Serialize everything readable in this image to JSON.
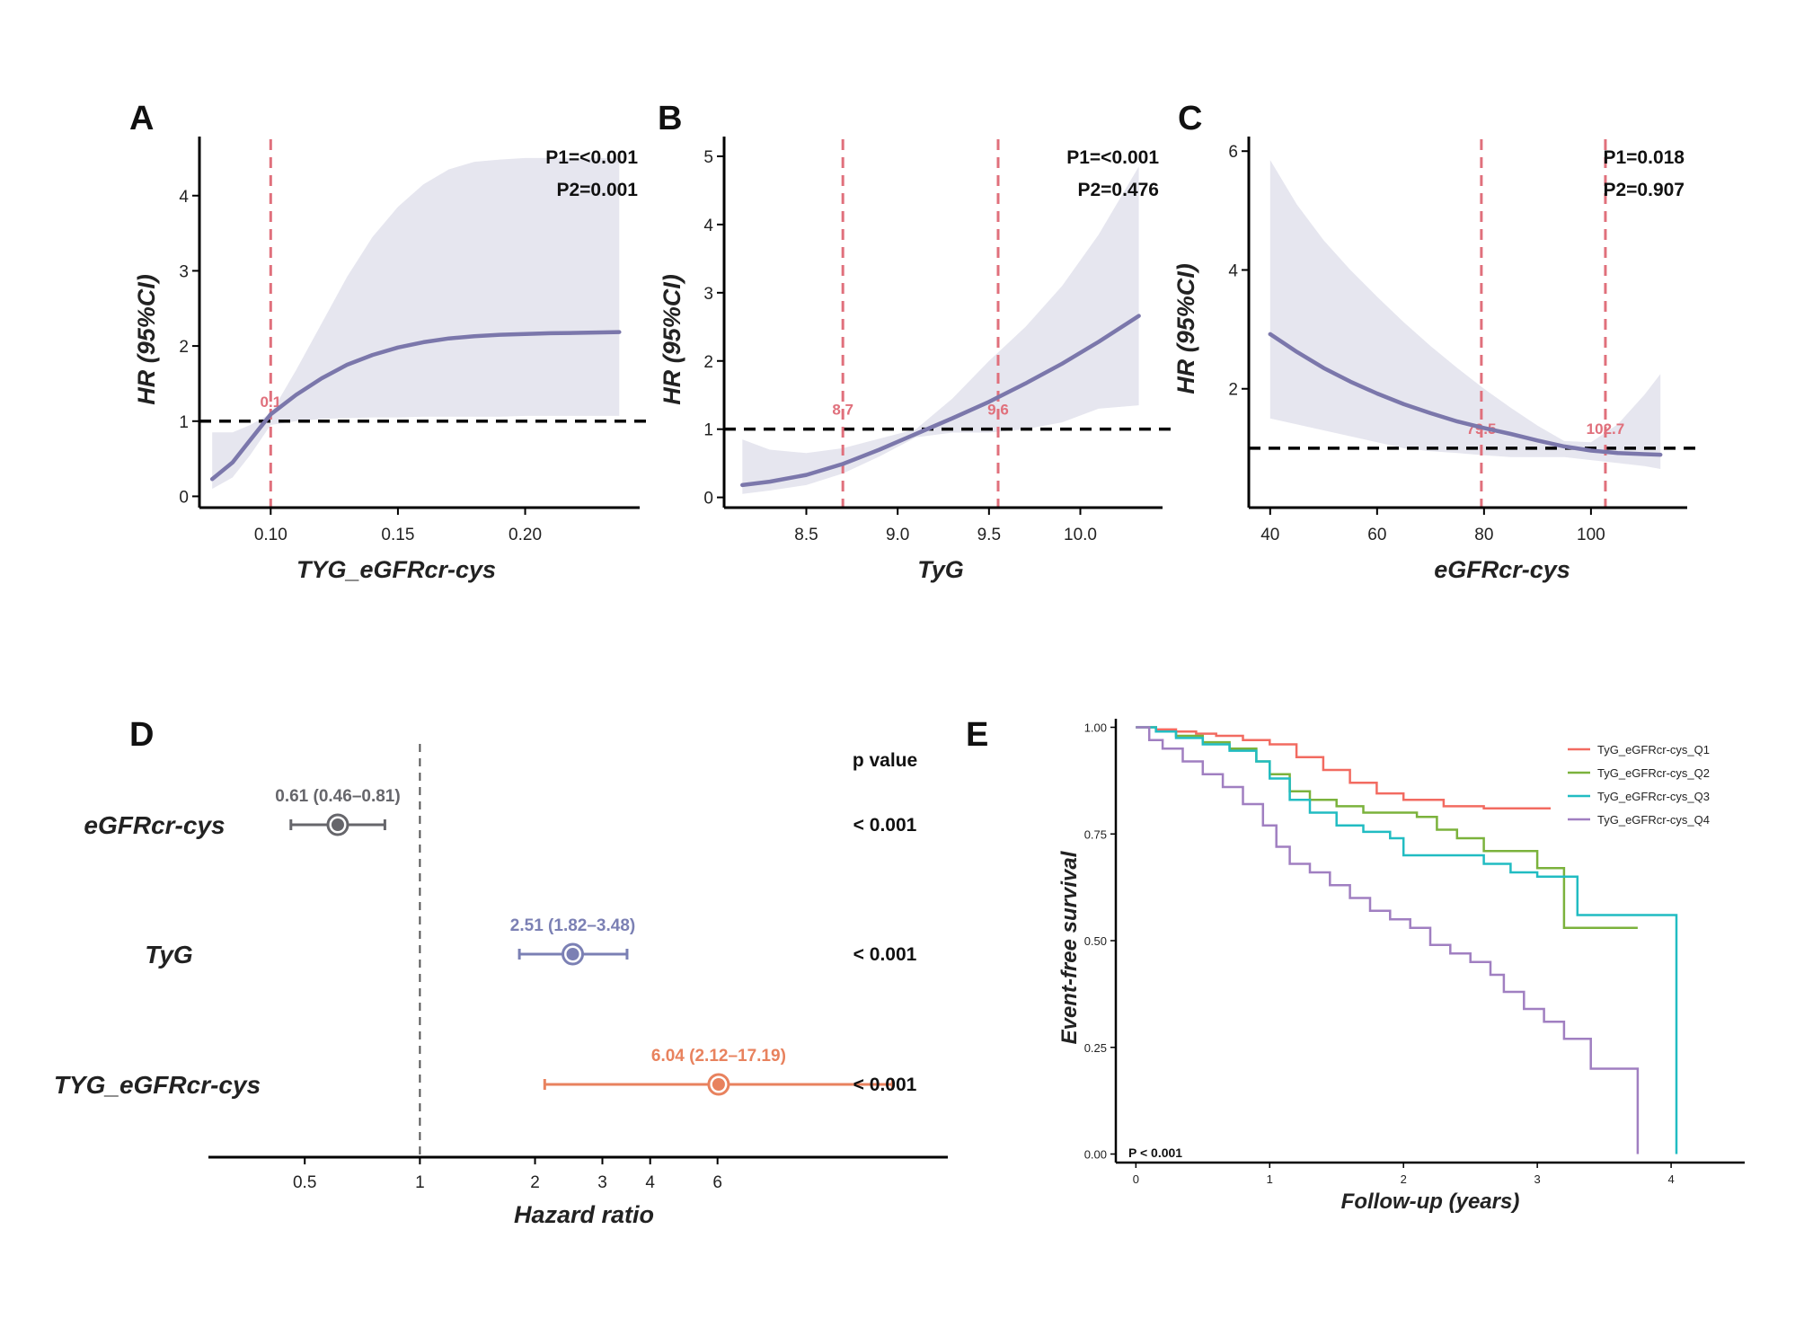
{
  "colors": {
    "curve": "#7b77ab",
    "band": "#e6e6ef",
    "knot_line": "#e0707c",
    "ref_line": "#000000",
    "forest": [
      "#66666b",
      "#7b80b4",
      "#e8825e"
    ],
    "km": [
      "#f26b61",
      "#7bb23c",
      "#21bcc2",
      "#a07fc1"
    ]
  },
  "chart_data": [
    {
      "panel": "A",
      "type": "line",
      "xlabel": "TYG_eGFRcr-cys",
      "ylabel": "HR (95%CI)",
      "xlim": [
        0.072,
        0.245
      ],
      "ylim": [
        -0.15,
        4.75
      ],
      "xticks": [
        0.1,
        0.15,
        0.2
      ],
      "xtick_labels": [
        "0.10",
        "0.15",
        "0.20"
      ],
      "yticks": [
        0,
        1,
        2,
        3,
        4
      ],
      "reference_line": 1,
      "knots": [
        {
          "x": 0.1,
          "label": "0.1"
        }
      ],
      "p_values": [
        "P1=<0.001",
        "P2=0.001"
      ],
      "x": [
        0.077,
        0.085,
        0.092,
        0.1,
        0.11,
        0.12,
        0.13,
        0.14,
        0.15,
        0.16,
        0.17,
        0.18,
        0.19,
        0.2,
        0.21,
        0.22,
        0.23,
        0.237
      ],
      "hr": [
        0.23,
        0.45,
        0.75,
        1.09,
        1.35,
        1.57,
        1.75,
        1.88,
        1.98,
        2.05,
        2.1,
        2.13,
        2.15,
        2.16,
        2.17,
        2.175,
        2.18,
        2.185
      ],
      "lower": [
        0.1,
        0.25,
        0.55,
        0.95,
        1.0,
        1.03,
        1.04,
        1.05,
        1.05,
        1.06,
        1.06,
        1.06,
        1.06,
        1.07,
        1.07,
        1.07,
        1.07,
        1.07
      ],
      "upper": [
        0.85,
        0.85,
        0.95,
        1.1,
        1.68,
        2.3,
        2.92,
        3.45,
        3.85,
        4.15,
        4.35,
        4.45,
        4.48,
        4.5,
        4.5,
        4.5,
        4.5,
        4.5
      ]
    },
    {
      "panel": "B",
      "type": "line",
      "xlabel": "TyG",
      "ylabel": "HR (95%CI)",
      "xlim": [
        8.05,
        10.45
      ],
      "ylim": [
        -0.15,
        5.25
      ],
      "xticks": [
        8.5,
        9.0,
        9.5,
        10.0
      ],
      "xtick_labels": [
        "8.5",
        "9.0",
        "9.5",
        "10.0"
      ],
      "yticks": [
        0,
        1,
        2,
        3,
        4,
        5
      ],
      "reference_line": 1,
      "knots": [
        {
          "x": 8.7,
          "label": "8.7"
        },
        {
          "x": 9.55,
          "label": "9.6"
        }
      ],
      "p_values": [
        "P1=<0.001",
        "P2=0.476"
      ],
      "x": [
        8.15,
        8.3,
        8.5,
        8.7,
        8.9,
        9.1,
        9.3,
        9.5,
        9.7,
        9.9,
        10.1,
        10.32
      ],
      "hr": [
        0.18,
        0.23,
        0.33,
        0.49,
        0.7,
        0.93,
        1.16,
        1.4,
        1.67,
        1.96,
        2.28,
        2.66
      ],
      "lower": [
        0.05,
        0.1,
        0.18,
        0.35,
        0.6,
        0.88,
        0.95,
        0.95,
        1.0,
        1.1,
        1.3,
        1.35
      ],
      "upper": [
        0.85,
        0.7,
        0.65,
        0.72,
        0.86,
        1.0,
        1.45,
        2.0,
        2.5,
        3.1,
        3.85,
        4.85
      ]
    },
    {
      "panel": "C",
      "type": "line",
      "xlabel": "eGFRcr-cys",
      "ylabel": "HR (95%CI)",
      "xlim": [
        36,
        118
      ],
      "ylim": [
        0.0,
        6.2
      ],
      "xticks": [
        40,
        60,
        80,
        100
      ],
      "xtick_labels": [
        "40",
        "60",
        "80",
        "100"
      ],
      "yticks": [
        2,
        4,
        6
      ],
      "reference_line": 1,
      "knots": [
        {
          "x": 79.5,
          "label": "79.5"
        },
        {
          "x": 102.7,
          "label": "102.7"
        }
      ],
      "p_values": [
        "P1=0.018",
        "P2=0.907"
      ],
      "x": [
        40,
        45,
        50,
        55,
        60,
        65,
        70,
        75,
        80,
        85,
        90,
        95,
        100,
        105,
        110,
        113
      ],
      "hr": [
        2.92,
        2.62,
        2.35,
        2.12,
        1.92,
        1.74,
        1.59,
        1.45,
        1.34,
        1.24,
        1.13,
        1.03,
        0.96,
        0.92,
        0.9,
        0.89
      ],
      "lower": [
        1.5,
        1.4,
        1.3,
        1.2,
        1.1,
        1.0,
        0.95,
        0.92,
        0.88,
        0.85,
        0.85,
        0.85,
        0.8,
        0.75,
        0.7,
        0.65
      ],
      "upper": [
        5.85,
        5.1,
        4.5,
        4.0,
        3.55,
        3.12,
        2.72,
        2.35,
        2.0,
        1.68,
        1.38,
        1.12,
        1.1,
        1.4,
        1.9,
        2.25
      ]
    },
    {
      "panel": "D",
      "type": "scatter",
      "xlabel": "Hazard ratio",
      "xscale": "log",
      "xlim": [
        0.28,
        24
      ],
      "xticks": [
        0.5,
        1,
        2,
        3,
        4,
        6
      ],
      "xtick_labels": [
        "0.5",
        "1",
        "2",
        "3",
        "4",
        "6"
      ],
      "reference_line": 1,
      "pvalue_header": "p value",
      "rows": [
        {
          "label": "eGFRcr-cys",
          "hr": 0.61,
          "lower": 0.46,
          "upper": 0.81,
          "text": "0.61 (0.46–0.81)",
          "p": "< 0.001"
        },
        {
          "label": "TyG",
          "hr": 2.51,
          "lower": 1.82,
          "upper": 3.48,
          "text": "2.51 (1.82–3.48)",
          "p": "< 0.001"
        },
        {
          "label": "TYG_eGFRcr-cys",
          "hr": 6.04,
          "lower": 2.12,
          "upper": 17.19,
          "text": "6.04 (2.12–17.19)",
          "p": "< 0.001"
        }
      ]
    },
    {
      "panel": "E",
      "type": "line",
      "step": true,
      "xlabel": "Follow-up (years)",
      "ylabel": "Event-free survival",
      "xlim": [
        -0.15,
        4.55
      ],
      "ylim": [
        -0.02,
        1.02
      ],
      "xticks": [
        0,
        1,
        2,
        3,
        4
      ],
      "yticks": [
        0.0,
        0.25,
        0.5,
        0.75,
        1.0
      ],
      "ytick_labels": [
        "0.00",
        "0.25",
        "0.50",
        "0.75",
        "1.00"
      ],
      "p_text": "P < 0.001",
      "series": [
        {
          "name": "TyG_eGFRcr-cys_Q1",
          "x": [
            0,
            0.15,
            0.3,
            0.45,
            0.6,
            0.8,
            1.0,
            1.2,
            1.4,
            1.6,
            1.8,
            2.0,
            2.3,
            2.6,
            3.1
          ],
          "y": [
            1.0,
            0.995,
            0.99,
            0.985,
            0.98,
            0.97,
            0.96,
            0.93,
            0.9,
            0.87,
            0.845,
            0.83,
            0.815,
            0.81,
            0.81
          ]
        },
        {
          "name": "TyG_eGFRcr-cys_Q2",
          "x": [
            0,
            0.15,
            0.3,
            0.5,
            0.7,
            0.9,
            1.0,
            1.15,
            1.3,
            1.5,
            1.7,
            1.9,
            2.1,
            2.25,
            2.4,
            2.6,
            2.9,
            3.0,
            3.2,
            3.75
          ],
          "y": [
            1.0,
            0.99,
            0.98,
            0.965,
            0.95,
            0.92,
            0.89,
            0.85,
            0.83,
            0.815,
            0.8,
            0.8,
            0.79,
            0.76,
            0.74,
            0.71,
            0.71,
            0.67,
            0.53,
            0.53
          ]
        },
        {
          "name": "TyG_eGFRcr-cys_Q3",
          "x": [
            0,
            0.15,
            0.3,
            0.5,
            0.7,
            0.9,
            1.0,
            1.15,
            1.3,
            1.5,
            1.7,
            1.9,
            2.0,
            2.3,
            2.6,
            2.8,
            3.0,
            3.3,
            3.7,
            4.04
          ],
          "y": [
            1.0,
            0.99,
            0.975,
            0.96,
            0.945,
            0.92,
            0.88,
            0.83,
            0.8,
            0.77,
            0.755,
            0.74,
            0.7,
            0.7,
            0.68,
            0.66,
            0.65,
            0.56,
            0.56,
            0.0
          ]
        },
        {
          "name": "TyG_eGFRcr-cys_Q4",
          "x": [
            0,
            0.1,
            0.2,
            0.35,
            0.5,
            0.65,
            0.8,
            0.95,
            1.05,
            1.15,
            1.3,
            1.45,
            1.6,
            1.75,
            1.9,
            2.05,
            2.2,
            2.35,
            2.5,
            2.65,
            2.75,
            2.9,
            3.05,
            3.2,
            3.4,
            3.6,
            3.75
          ],
          "y": [
            1.0,
            0.97,
            0.95,
            0.92,
            0.89,
            0.86,
            0.82,
            0.77,
            0.72,
            0.68,
            0.66,
            0.63,
            0.6,
            0.57,
            0.55,
            0.53,
            0.49,
            0.47,
            0.45,
            0.42,
            0.38,
            0.34,
            0.31,
            0.27,
            0.2,
            0.2,
            0.0
          ]
        }
      ]
    }
  ]
}
